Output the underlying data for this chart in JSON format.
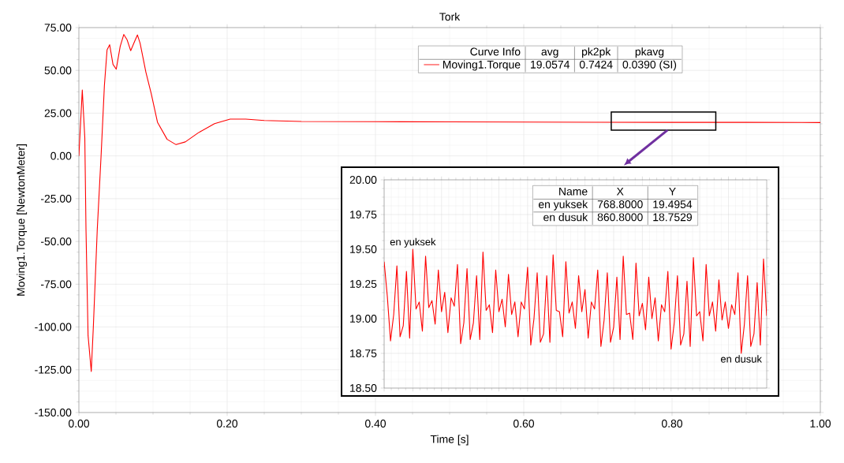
{
  "chart_data": [
    {
      "type": "line",
      "title": "Tork",
      "xlabel": "Time [s]",
      "ylabel": "Moving1.Torque [NewtonMeter]",
      "x": [
        0,
        0.0046,
        0.008,
        0.0096,
        0.0124,
        0.0167,
        0.0195,
        0.0248,
        0.03,
        0.0344,
        0.038,
        0.0415,
        0.046,
        0.0504,
        0.0557,
        0.0606,
        0.0649,
        0.0699,
        0.0755,
        0.079,
        0.0826,
        0.0904,
        0.0975,
        0.106,
        0.119,
        0.131,
        0.1436,
        0.161,
        0.183,
        0.204,
        0.225,
        0.25,
        0.3,
        0.4,
        0.5,
        0.6,
        0.7,
        0.8,
        0.9,
        1.0
      ],
      "series": [
        {
          "name": "Moving1.Torque",
          "color": "#ff0000",
          "values": [
            0,
            38.5,
            10.5,
            -43,
            -105,
            -126,
            -100,
            -43,
            0.5,
            41,
            62,
            65,
            53.5,
            50.7,
            64,
            71,
            68,
            61.5,
            67.3,
            70.7,
            65.8,
            48.9,
            36.6,
            19.7,
            9.7,
            6.6,
            8.2,
            13.5,
            18.9,
            21.5,
            21.5,
            20.7,
            20.1,
            20,
            19.9,
            19.8,
            19.7,
            19.6,
            19.6,
            19.5
          ]
        }
      ],
      "xlim": [
        0,
        1
      ],
      "ylim": [
        -150,
        75
      ],
      "xticks": [
        {
          "value": 0,
          "label": "0.00"
        },
        {
          "value": 0.2,
          "label": "0.20"
        },
        {
          "value": 0.4,
          "label": "0.40"
        },
        {
          "value": 0.6,
          "label": "0.60"
        },
        {
          "value": 0.8,
          "label": "0.80"
        },
        {
          "value": 1,
          "label": "1.00"
        }
      ],
      "yticks": [
        {
          "value": -150,
          "label": "-150.00"
        },
        {
          "value": -125,
          "label": "-125.00"
        },
        {
          "value": -100,
          "label": "-100.00"
        },
        {
          "value": -75,
          "label": "-75.00"
        },
        {
          "value": -50,
          "label": "-50.00"
        },
        {
          "value": -25,
          "label": "-25.00"
        },
        {
          "value": 0,
          "label": "0.00"
        },
        {
          "value": 25,
          "label": "25.00"
        },
        {
          "value": 50,
          "label": "50.00"
        },
        {
          "value": 75,
          "label": "75.00"
        }
      ],
      "grid": true,
      "legend": "top right",
      "annotations": [
        "Curve Info",
        "avg",
        "pk2pk",
        "pkavg",
        "19.0574",
        "0.7424",
        "0.0390 (SI)"
      ]
    },
    {
      "type": "line",
      "categories": [
        null,
        null,
        null,
        null,
        null,
        null,
        null,
        null,
        null,
        null,
        null,
        null,
        null,
        null,
        null,
        null,
        null,
        null,
        null,
        null,
        null,
        null,
        null,
        null,
        null,
        null,
        null,
        null,
        null,
        null,
        null,
        null,
        null,
        null,
        null,
        null,
        null,
        null,
        null,
        null,
        null,
        null,
        null,
        null,
        null,
        null,
        null,
        null,
        null,
        null,
        null,
        null,
        null,
        null,
        null,
        null,
        null,
        null,
        null,
        null,
        null,
        null,
        null,
        null,
        null,
        null,
        null,
        null,
        null,
        null,
        null,
        null,
        null,
        null,
        null,
        null,
        null,
        null,
        null,
        null,
        null,
        null,
        null,
        null,
        null,
        null,
        null,
        null,
        null,
        null,
        null,
        null,
        null,
        null,
        null,
        null,
        null,
        null,
        null,
        null,
        null,
        null,
        null,
        null,
        null,
        null,
        null,
        null,
        null,
        null,
        null,
        null,
        null,
        null,
        null,
        null,
        null,
        null,
        null,
        null,
        null
      ],
      "series": [
        {
          "color": "#ff0000",
          "values": [
            19.41,
            19.16,
            18.84,
            19.03,
            19.38,
            18.87,
            18.95,
            19.34,
            18.86,
            19.5,
            19.07,
            19.12,
            18.91,
            19.45,
            19.08,
            19.13,
            18.96,
            19.35,
            19.05,
            19.19,
            18.9,
            19.15,
            19.09,
            19.39,
            18.82,
            18.97,
            19.36,
            18.85,
            18.97,
            19.31,
            18.85,
            19.48,
            19.06,
            19.1,
            18.9,
            19.35,
            19.05,
            19.14,
            18.94,
            19.32,
            19.03,
            19.12,
            18.87,
            19.12,
            19.07,
            19.37,
            18.81,
            19.0,
            19.33,
            18.83,
            18.89,
            19.31,
            18.83,
            19.46,
            19.06,
            19.05,
            18.87,
            19.41,
            19.04,
            19.12,
            18.93,
            19.31,
            19.05,
            19.21,
            18.86,
            19.12,
            19.07,
            19.35,
            18.8,
            18.99,
            19.33,
            18.83,
            18.94,
            19.3,
            18.85,
            19.45,
            19.03,
            19.04,
            18.85,
            19.4,
            19.02,
            19.11,
            18.92,
            19.3,
            19.0,
            19.15,
            18.84,
            19.1,
            19.05,
            19.34,
            18.78,
            18.97,
            19.31,
            18.81,
            18.89,
            19.27,
            18.8,
            19.44,
            19.02,
            19.05,
            18.84,
            19.39,
            19.02,
            19.12,
            18.91,
            19.28,
            18.99,
            19.12,
            18.93,
            19.1,
            19.03,
            19.33,
            18.75,
            18.96,
            19.31,
            18.8,
            18.89,
            19.26,
            18.81,
            19.43,
            19.02
          ]
        }
      ],
      "ylim": [
        18.5,
        20
      ],
      "yticks": [
        {
          "value": 18.5,
          "label": "18.50"
        },
        {
          "value": 18.75,
          "label": "18.75"
        },
        {
          "value": 19,
          "label": "19.00"
        },
        {
          "value": 19.25,
          "label": "19.25"
        },
        {
          "value": 19.5,
          "label": "19.50"
        },
        {
          "value": 19.75,
          "label": "19.75"
        },
        {
          "value": 20,
          "label": "20.00"
        }
      ],
      "grid": true,
      "tick_labels": "y",
      "annotations": [
        "Name",
        "X",
        "Y",
        "en yuksek",
        "768.8000",
        "19.4954",
        "en dusuk",
        "860.8000",
        "18.7529",
        {
          "text": "en yuksek",
          "y": 19.5
        },
        {
          "text": "en dusuk",
          "y": 18.75
        }
      ]
    }
  ]
}
